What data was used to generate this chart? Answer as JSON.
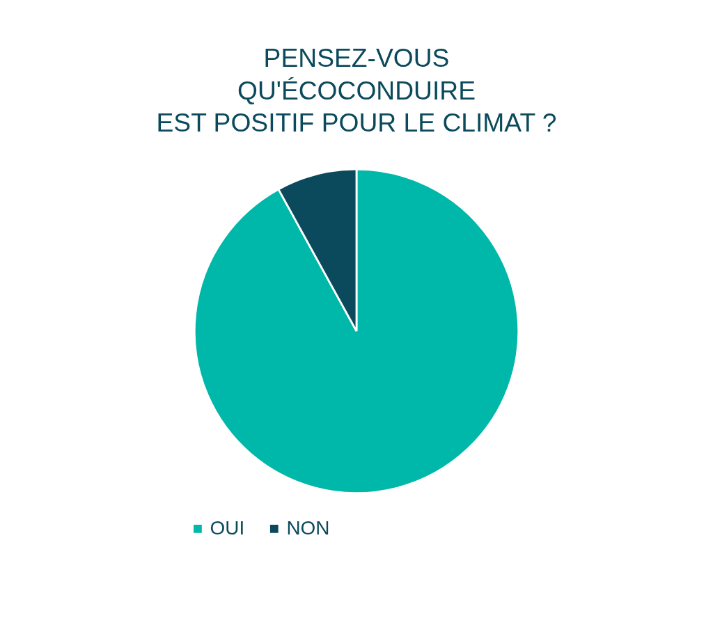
{
  "chart_data": {
    "type": "pie",
    "title": "PENSEZ-VOUS\nQU'ÉCOCONDUIRE\nEST POSITIF POUR LE CLIMAT ?",
    "categories": [
      "OUI",
      "NON"
    ],
    "values": [
      92,
      8
    ],
    "colors": [
      "#00b8a9",
      "#0b4a5c"
    ],
    "legend": "bottom"
  }
}
